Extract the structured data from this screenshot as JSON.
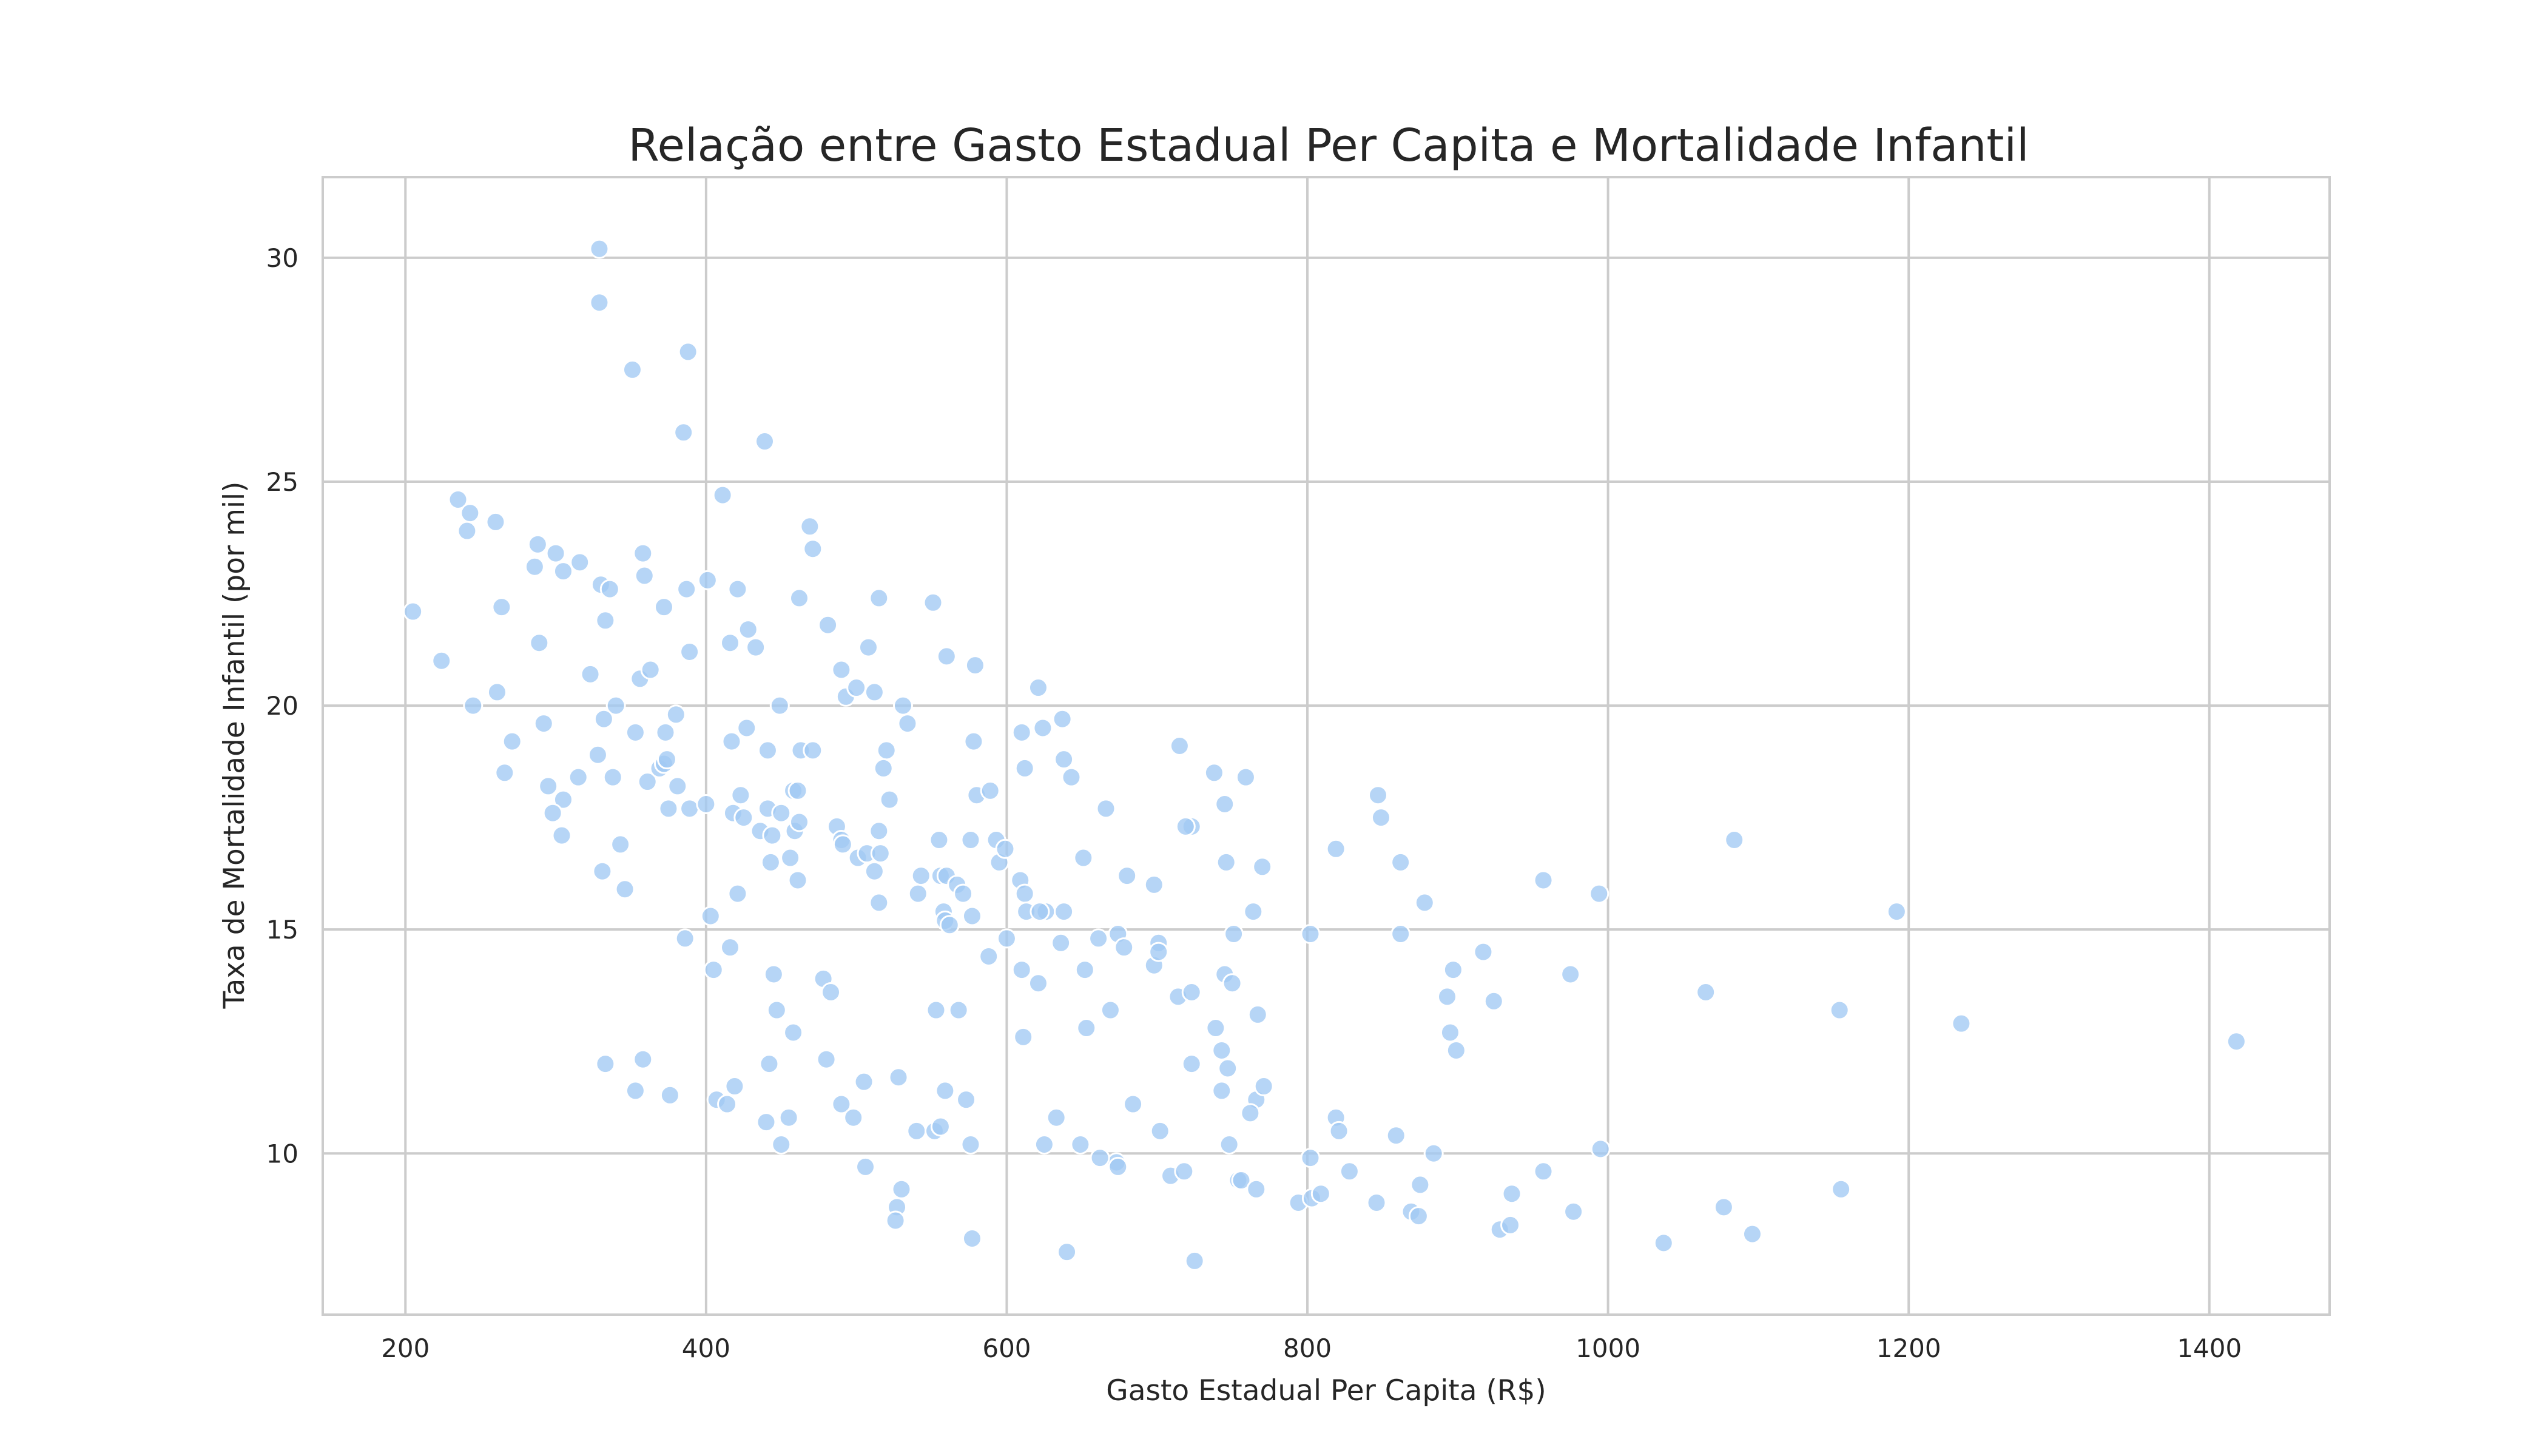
{
  "chart_data": {
    "type": "scatter",
    "title": "Relação entre Gasto Estadual Per Capita e Mortalidade Infantil",
    "xlabel": "Gasto Estadual Per Capita (R$)",
    "ylabel": "Taxa de Mortalidade Infantil (por mil)",
    "xlim": [
      145,
      1480
    ],
    "ylim": [
      6.4,
      31.8
    ],
    "xticks": [
      200,
      400,
      600,
      800,
      1000,
      1200,
      1400
    ],
    "yticks": [
      10,
      15,
      20,
      25,
      30
    ],
    "grid": true,
    "point_color": "#a1c9f4",
    "points": [
      [
        329,
        30.2
      ],
      [
        329,
        29.0
      ],
      [
        351,
        27.5
      ],
      [
        388,
        27.9
      ],
      [
        385,
        26.1
      ],
      [
        439,
        25.9
      ],
      [
        411,
        24.7
      ],
      [
        235,
        24.6
      ],
      [
        243,
        24.3
      ],
      [
        241,
        23.9
      ],
      [
        260,
        24.1
      ],
      [
        288,
        23.6
      ],
      [
        300,
        23.4
      ],
      [
        316,
        23.2
      ],
      [
        358,
        23.4
      ],
      [
        469,
        24.0
      ],
      [
        471,
        23.5
      ],
      [
        286,
        23.1
      ],
      [
        305,
        23.0
      ],
      [
        330,
        22.7
      ],
      [
        336,
        22.6
      ],
      [
        359,
        22.9
      ],
      [
        387,
        22.6
      ],
      [
        401,
        22.8
      ],
      [
        421,
        22.6
      ],
      [
        205,
        22.1
      ],
      [
        264,
        22.2
      ],
      [
        372,
        22.2
      ],
      [
        462,
        22.4
      ],
      [
        515,
        22.4
      ],
      [
        551,
        22.3
      ],
      [
        289,
        21.4
      ],
      [
        389,
        21.2
      ],
      [
        416,
        21.4
      ],
      [
        428,
        21.7
      ],
      [
        433,
        21.3
      ],
      [
        481,
        21.8
      ],
      [
        508,
        21.3
      ],
      [
        224,
        21.0
      ],
      [
        323,
        20.7
      ],
      [
        333,
        21.9
      ],
      [
        356,
        20.6
      ],
      [
        363,
        20.8
      ],
      [
        560,
        21.1
      ],
      [
        579,
        20.9
      ],
      [
        245,
        20.0
      ],
      [
        261,
        20.3
      ],
      [
        340,
        20.0
      ],
      [
        449,
        20.0
      ],
      [
        490,
        20.8
      ],
      [
        493,
        20.2
      ],
      [
        500,
        20.4
      ],
      [
        512,
        20.3
      ],
      [
        621,
        20.4
      ],
      [
        271,
        19.2
      ],
      [
        292,
        19.6
      ],
      [
        332,
        19.7
      ],
      [
        353,
        19.4
      ],
      [
        373,
        19.4
      ],
      [
        380,
        19.8
      ],
      [
        417,
        19.2
      ],
      [
        427,
        19.5
      ],
      [
        463,
        19.0
      ],
      [
        441,
        19.0
      ],
      [
        471,
        19.0
      ],
      [
        520,
        19.0
      ],
      [
        531,
        20.0
      ],
      [
        534,
        19.6
      ],
      [
        578,
        19.2
      ],
      [
        610,
        19.4
      ],
      [
        624,
        19.5
      ],
      [
        637,
        19.7
      ],
      [
        715,
        19.1
      ],
      [
        266,
        18.5
      ],
      [
        295,
        18.2
      ],
      [
        305,
        17.9
      ],
      [
        315,
        18.4
      ],
      [
        328,
        18.9
      ],
      [
        338,
        18.4
      ],
      [
        361,
        18.3
      ],
      [
        369,
        18.6
      ],
      [
        372,
        18.7
      ],
      [
        374,
        18.8
      ],
      [
        381,
        18.2
      ],
      [
        423,
        18.0
      ],
      [
        458,
        18.1
      ],
      [
        461,
        18.1
      ],
      [
        518,
        18.6
      ],
      [
        522,
        17.9
      ],
      [
        580,
        18.0
      ],
      [
        589,
        18.1
      ],
      [
        612,
        18.6
      ],
      [
        638,
        18.8
      ],
      [
        643,
        18.4
      ],
      [
        738,
        18.5
      ],
      [
        759,
        18.4
      ],
      [
        847,
        18.0
      ],
      [
        298,
        17.6
      ],
      [
        304,
        17.1
      ],
      [
        343,
        16.9
      ],
      [
        375,
        17.7
      ],
      [
        389,
        17.7
      ],
      [
        400,
        17.8
      ],
      [
        418,
        17.6
      ],
      [
        425,
        17.5
      ],
      [
        436,
        17.2
      ],
      [
        441,
        17.7
      ],
      [
        444,
        17.1
      ],
      [
        450,
        17.6
      ],
      [
        456,
        16.6
      ],
      [
        459,
        17.2
      ],
      [
        462,
        17.4
      ],
      [
        487,
        17.3
      ],
      [
        490,
        17.0
      ],
      [
        491,
        16.9
      ],
      [
        501,
        16.6
      ],
      [
        507,
        16.7
      ],
      [
        512,
        16.3
      ],
      [
        515,
        17.2
      ],
      [
        516,
        16.7
      ],
      [
        555,
        17.0
      ],
      [
        556,
        16.2
      ],
      [
        560,
        16.2
      ],
      [
        567,
        16.0
      ],
      [
        576,
        17.0
      ],
      [
        593,
        17.0
      ],
      [
        595,
        16.5
      ],
      [
        599,
        16.8
      ],
      [
        609,
        16.1
      ],
      [
        651,
        16.6
      ],
      [
        666,
        17.7
      ],
      [
        680,
        16.2
      ],
      [
        698,
        16.0
      ],
      [
        723,
        17.3
      ],
      [
        719,
        17.3
      ],
      [
        745,
        17.8
      ],
      [
        746,
        16.5
      ],
      [
        770,
        16.4
      ],
      [
        819,
        16.8
      ],
      [
        849,
        17.5
      ],
      [
        862,
        16.5
      ],
      [
        1084,
        17.0
      ],
      [
        331,
        16.3
      ],
      [
        346,
        15.9
      ],
      [
        386,
        14.8
      ],
      [
        403,
        15.3
      ],
      [
        421,
        15.8
      ],
      [
        443,
        16.5
      ],
      [
        461,
        16.1
      ],
      [
        515,
        15.6
      ],
      [
        541,
        15.8
      ],
      [
        543,
        16.2
      ],
      [
        558,
        15.4
      ],
      [
        559,
        15.2
      ],
      [
        562,
        15.1
      ],
      [
        571,
        15.8
      ],
      [
        577,
        15.3
      ],
      [
        588,
        14.4
      ],
      [
        600,
        14.8
      ],
      [
        612,
        15.8
      ],
      [
        613,
        15.4
      ],
      [
        626,
        15.4
      ],
      [
        622,
        15.4
      ],
      [
        638,
        15.4
      ],
      [
        636,
        14.7
      ],
      [
        661,
        14.8
      ],
      [
        674,
        14.9
      ],
      [
        678,
        14.6
      ],
      [
        698,
        14.2
      ],
      [
        701,
        14.7
      ],
      [
        701,
        14.5
      ],
      [
        714,
        13.5
      ],
      [
        751,
        14.9
      ],
      [
        764,
        15.4
      ],
      [
        802,
        14.9
      ],
      [
        862,
        14.9
      ],
      [
        878,
        15.6
      ],
      [
        917,
        14.5
      ],
      [
        957,
        16.1
      ],
      [
        994,
        15.8
      ],
      [
        1192,
        15.4
      ],
      [
        405,
        14.1
      ],
      [
        416,
        14.6
      ],
      [
        445,
        14.0
      ],
      [
        447,
        13.2
      ],
      [
        478,
        13.9
      ],
      [
        483,
        13.6
      ],
      [
        553,
        13.2
      ],
      [
        568,
        13.2
      ],
      [
        610,
        14.1
      ],
      [
        621,
        13.8
      ],
      [
        652,
        14.1
      ],
      [
        669,
        13.2
      ],
      [
        723,
        13.6
      ],
      [
        745,
        14.0
      ],
      [
        750,
        13.8
      ],
      [
        767,
        13.1
      ],
      [
        893,
        13.5
      ],
      [
        897,
        14.1
      ],
      [
        924,
        13.4
      ],
      [
        975,
        14.0
      ],
      [
        1065,
        13.6
      ],
      [
        1154,
        13.2
      ],
      [
        1235,
        12.9
      ],
      [
        333,
        12.0
      ],
      [
        358,
        12.1
      ],
      [
        442,
        12.0
      ],
      [
        458,
        12.7
      ],
      [
        480,
        12.1
      ],
      [
        528,
        11.7
      ],
      [
        611,
        12.6
      ],
      [
        653,
        12.8
      ],
      [
        723,
        12.0
      ],
      [
        739,
        12.8
      ],
      [
        743,
        12.3
      ],
      [
        747,
        11.9
      ],
      [
        895,
        12.7
      ],
      [
        899,
        12.3
      ],
      [
        1418,
        12.5
      ],
      [
        353,
        11.4
      ],
      [
        376,
        11.3
      ],
      [
        407,
        11.2
      ],
      [
        414,
        11.1
      ],
      [
        419,
        11.5
      ],
      [
        455,
        10.8
      ],
      [
        490,
        11.1
      ],
      [
        505,
        11.6
      ],
      [
        559,
        11.4
      ],
      [
        573,
        11.2
      ],
      [
        633,
        10.8
      ],
      [
        684,
        11.1
      ],
      [
        743,
        11.4
      ],
      [
        766,
        11.2
      ],
      [
        771,
        11.5
      ],
      [
        762,
        10.9
      ],
      [
        819,
        10.8
      ],
      [
        440,
        10.7
      ],
      [
        450,
        10.2
      ],
      [
        498,
        10.8
      ],
      [
        540,
        10.5
      ],
      [
        552,
        10.5
      ],
      [
        556,
        10.6
      ],
      [
        576,
        10.2
      ],
      [
        625,
        10.2
      ],
      [
        649,
        10.2
      ],
      [
        673,
        9.8
      ],
      [
        674,
        9.7
      ],
      [
        702,
        10.5
      ],
      [
        748,
        10.2
      ],
      [
        821,
        10.5
      ],
      [
        859,
        10.4
      ],
      [
        802,
        9.9
      ],
      [
        884,
        10.0
      ],
      [
        995,
        10.1
      ],
      [
        506,
        9.7
      ],
      [
        530,
        9.2
      ],
      [
        527,
        8.8
      ],
      [
        526,
        8.5
      ],
      [
        662,
        9.9
      ],
      [
        709,
        9.5
      ],
      [
        718,
        9.6
      ],
      [
        754,
        9.4
      ],
      [
        756,
        9.4
      ],
      [
        766,
        9.2
      ],
      [
        794,
        8.9
      ],
      [
        803,
        9.0
      ],
      [
        809,
        9.1
      ],
      [
        828,
        9.6
      ],
      [
        846,
        8.9
      ],
      [
        869,
        8.7
      ],
      [
        874,
        8.6
      ],
      [
        875,
        9.3
      ],
      [
        928,
        8.3
      ],
      [
        935,
        8.4
      ],
      [
        936,
        9.1
      ],
      [
        957,
        9.6
      ],
      [
        977,
        8.7
      ],
      [
        1037,
        8.0
      ],
      [
        1077,
        8.8
      ],
      [
        1096,
        8.2
      ],
      [
        1155,
        9.2
      ],
      [
        577,
        8.1
      ],
      [
        640,
        7.8
      ],
      [
        725,
        7.6
      ]
    ]
  }
}
